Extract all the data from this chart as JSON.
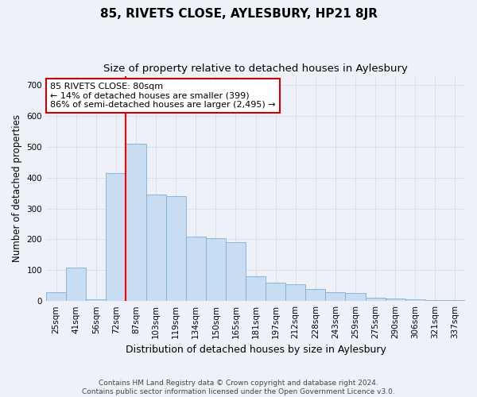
{
  "title": "85, RIVETS CLOSE, AYLESBURY, HP21 8JR",
  "subtitle": "Size of property relative to detached houses in Aylesbury",
  "xlabel": "Distribution of detached houses by size in Aylesbury",
  "ylabel": "Number of detached properties",
  "categories": [
    "25sqm",
    "41sqm",
    "56sqm",
    "72sqm",
    "87sqm",
    "103sqm",
    "119sqm",
    "134sqm",
    "150sqm",
    "165sqm",
    "181sqm",
    "197sqm",
    "212sqm",
    "228sqm",
    "243sqm",
    "259sqm",
    "275sqm",
    "290sqm",
    "306sqm",
    "321sqm",
    "337sqm"
  ],
  "values": [
    28,
    108,
    5,
    415,
    510,
    345,
    340,
    210,
    205,
    190,
    80,
    60,
    55,
    38,
    30,
    27,
    12,
    8,
    5,
    2,
    3
  ],
  "bar_color": "#c9ddf2",
  "bar_edge_color": "#7daed4",
  "red_line_index": 3.5,
  "annotation_text": "85 RIVETS CLOSE: 80sqm\n← 14% of detached houses are smaller (399)\n86% of semi-detached houses are larger (2,495) →",
  "annotation_box_color": "#ffffff",
  "annotation_box_edge": "#cc0000",
  "ylim": [
    0,
    730
  ],
  "yticks": [
    0,
    100,
    200,
    300,
    400,
    500,
    600,
    700
  ],
  "footer": "Contains HM Land Registry data © Crown copyright and database right 2024.\nContains public sector information licensed under the Open Government Licence v3.0.",
  "background_color": "#eef2f8",
  "grid_color": "#d8e0ec",
  "plot_bg_color": "#eef2f8",
  "title_fontsize": 11,
  "subtitle_fontsize": 9.5,
  "xlabel_fontsize": 9,
  "ylabel_fontsize": 8.5,
  "tick_fontsize": 7.5,
  "annotation_fontsize": 8,
  "footer_fontsize": 6.5
}
